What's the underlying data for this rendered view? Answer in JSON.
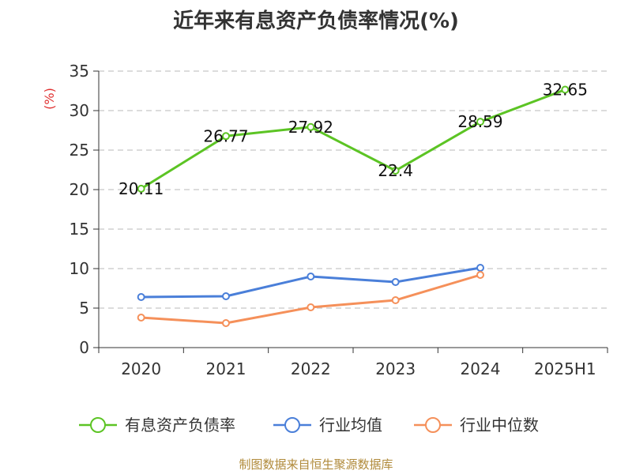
{
  "chart_data": {
    "type": "line",
    "title": "近年来有息资产负债率情况(%)",
    "ylabel": "(%)",
    "categories": [
      "2020",
      "2021",
      "2022",
      "2023",
      "2024",
      "2025H1"
    ],
    "yticks": [
      0,
      5,
      10,
      15,
      20,
      25,
      30,
      35
    ],
    "ylim": [
      0,
      35
    ],
    "grid": true,
    "legend_position": "bottom",
    "series": [
      {
        "name": "有息资产负债率",
        "color": "#5cc424",
        "values": [
          20.11,
          26.77,
          27.92,
          22.4,
          28.59,
          32.65
        ],
        "labels": [
          "20.11",
          "26.77",
          "27.92",
          "22.4",
          "28.59",
          "32.65"
        ]
      },
      {
        "name": "行业均值",
        "color": "#4a7fd9",
        "values": [
          6.4,
          6.5,
          9.0,
          8.3,
          10.1,
          null
        ]
      },
      {
        "name": "行业中位数",
        "color": "#f5905a",
        "values": [
          3.8,
          3.1,
          5.1,
          6.0,
          9.2,
          null
        ]
      }
    ]
  },
  "source": "制图数据来自恒生聚源数据库"
}
